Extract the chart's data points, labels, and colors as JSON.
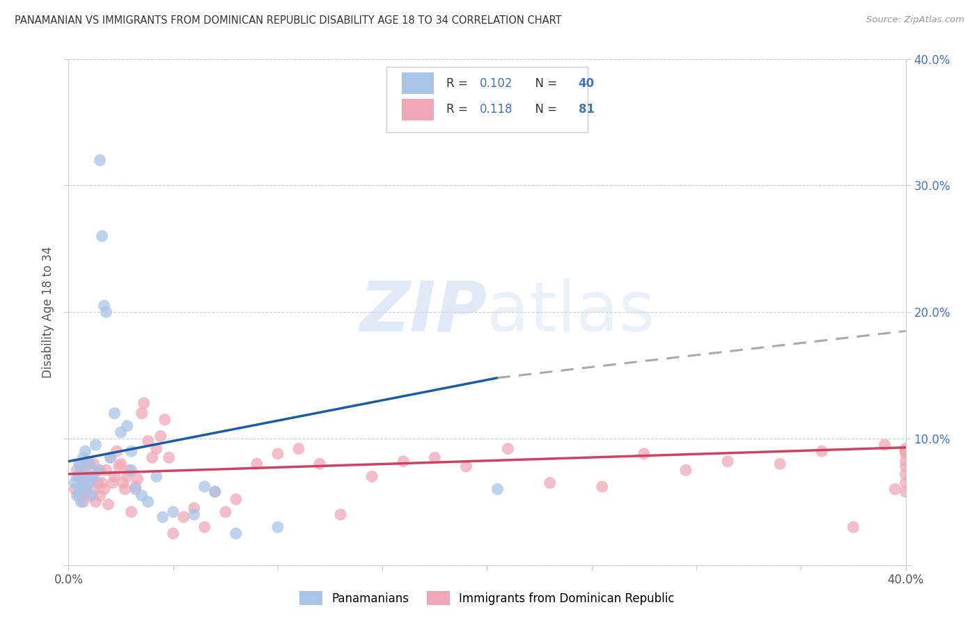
{
  "title": "PANAMANIAN VS IMMIGRANTS FROM DOMINICAN REPUBLIC DISABILITY AGE 18 TO 34 CORRELATION CHART",
  "source": "Source: ZipAtlas.com",
  "ylabel": "Disability Age 18 to 34",
  "xlim": [
    0.0,
    0.4
  ],
  "ylim": [
    0.0,
    0.4
  ],
  "r_blue": "0.102",
  "n_blue": "40",
  "r_pink": "0.118",
  "n_pink": "81",
  "label_blue": "Panamanians",
  "label_pink": "Immigrants from Dominican Republic",
  "blue_color": "#a8c4e8",
  "pink_color": "#f0a8b8",
  "trend_blue_color": "#1a5ca8",
  "trend_pink_color": "#d04060",
  "trend_gray_color": "#aaaaaa",
  "trend_blue_start_x": 0.0,
  "trend_blue_end_x": 0.205,
  "trend_blue_start_y": 0.082,
  "trend_blue_end_y": 0.148,
  "trend_gray_start_x": 0.205,
  "trend_gray_end_x": 0.4,
  "trend_gray_start_y": 0.148,
  "trend_gray_end_y": 0.185,
  "trend_pink_start_x": 0.0,
  "trend_pink_end_x": 0.4,
  "trend_pink_start_y": 0.072,
  "trend_pink_end_y": 0.093,
  "blue_scatter_x": [
    0.003,
    0.004,
    0.004,
    0.005,
    0.005,
    0.006,
    0.006,
    0.007,
    0.007,
    0.008,
    0.008,
    0.009,
    0.01,
    0.01,
    0.011,
    0.012,
    0.013,
    0.014,
    0.015,
    0.016,
    0.017,
    0.018,
    0.02,
    0.022,
    0.025,
    0.028,
    0.03,
    0.03,
    0.032,
    0.035,
    0.038,
    0.042,
    0.045,
    0.05,
    0.06,
    0.065,
    0.07,
    0.08,
    0.1,
    0.205
  ],
  "blue_scatter_y": [
    0.065,
    0.07,
    0.055,
    0.08,
    0.06,
    0.075,
    0.05,
    0.085,
    0.065,
    0.06,
    0.09,
    0.07,
    0.08,
    0.065,
    0.055,
    0.07,
    0.095,
    0.075,
    0.32,
    0.26,
    0.205,
    0.2,
    0.085,
    0.12,
    0.105,
    0.11,
    0.075,
    0.09,
    0.06,
    0.055,
    0.05,
    0.07,
    0.038,
    0.042,
    0.04,
    0.062,
    0.058,
    0.025,
    0.03,
    0.06
  ],
  "pink_scatter_x": [
    0.003,
    0.004,
    0.005,
    0.005,
    0.006,
    0.006,
    0.007,
    0.007,
    0.008,
    0.008,
    0.009,
    0.01,
    0.01,
    0.011,
    0.012,
    0.012,
    0.013,
    0.014,
    0.015,
    0.015,
    0.016,
    0.017,
    0.018,
    0.019,
    0.02,
    0.021,
    0.022,
    0.023,
    0.024,
    0.025,
    0.026,
    0.027,
    0.028,
    0.029,
    0.03,
    0.032,
    0.033,
    0.035,
    0.036,
    0.038,
    0.04,
    0.042,
    0.044,
    0.046,
    0.048,
    0.05,
    0.055,
    0.06,
    0.065,
    0.07,
    0.075,
    0.08,
    0.09,
    0.1,
    0.11,
    0.12,
    0.13,
    0.145,
    0.16,
    0.175,
    0.19,
    0.21,
    0.23,
    0.255,
    0.275,
    0.295,
    0.315,
    0.34,
    0.36,
    0.375,
    0.39,
    0.395,
    0.4,
    0.4,
    0.4,
    0.4,
    0.4,
    0.4,
    0.4,
    0.4,
    0.4
  ],
  "pink_scatter_y": [
    0.06,
    0.075,
    0.055,
    0.07,
    0.06,
    0.08,
    0.068,
    0.05,
    0.075,
    0.058,
    0.08,
    0.065,
    0.055,
    0.07,
    0.06,
    0.08,
    0.05,
    0.065,
    0.075,
    0.055,
    0.065,
    0.06,
    0.075,
    0.048,
    0.085,
    0.065,
    0.07,
    0.09,
    0.078,
    0.08,
    0.065,
    0.06,
    0.07,
    0.075,
    0.042,
    0.062,
    0.068,
    0.12,
    0.128,
    0.098,
    0.085,
    0.092,
    0.102,
    0.115,
    0.085,
    0.025,
    0.038,
    0.045,
    0.03,
    0.058,
    0.042,
    0.052,
    0.08,
    0.088,
    0.092,
    0.08,
    0.04,
    0.07,
    0.082,
    0.085,
    0.078,
    0.092,
    0.065,
    0.062,
    0.088,
    0.075,
    0.082,
    0.08,
    0.09,
    0.03,
    0.095,
    0.06,
    0.072,
    0.065,
    0.078,
    0.058,
    0.092,
    0.082,
    0.088,
    0.09,
    0.09
  ]
}
